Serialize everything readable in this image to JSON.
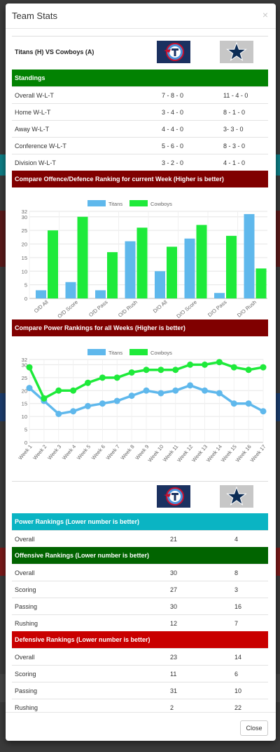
{
  "modal": {
    "title": "Team Stats",
    "close_icon": "×",
    "close_button": "Close"
  },
  "matchup": {
    "label": "Titans (H) VS Cowboys (A)",
    "home_logo": "titans-logo",
    "away_logo": "cowboys-star-logo"
  },
  "standings": {
    "title": "Standings",
    "rows": [
      {
        "label": "Overall W-L-T",
        "home": "7 - 8 - 0",
        "away": "11 - 4 - 0"
      },
      {
        "label": "Home W-L-T",
        "home": "3 - 4 - 0",
        "away": "8 - 1 - 0"
      },
      {
        "label": "Away W-L-T",
        "home": "4 - 4 - 0",
        "away": "3- 3 - 0"
      },
      {
        "label": "Conference W-L-T",
        "home": "5 - 6 - 0",
        "away": "8 - 3 - 0"
      },
      {
        "label": "Division W-L-T",
        "home": "3 - 2 - 0",
        "away": "4 - 1 - 0"
      }
    ]
  },
  "compare_title": "Compare Offence/Defence Ranking for current Week (Higher is better)",
  "power_title": "Compare Power Rankings for all Weeks (Higher is better)",
  "colors": {
    "titans": "#5fb8ec",
    "cowboys": "#1eea3a"
  },
  "chart_data": [
    {
      "type": "bar",
      "categories": [
        "O/D All",
        "O/D Score",
        "O/D Pass",
        "O/D Rush",
        "D/O All",
        "D/O Score",
        "D/O Pass",
        "D/O Rush"
      ],
      "series": [
        {
          "name": "Titans",
          "values": [
            3,
            6,
            3,
            21,
            10,
            22,
            2,
            31
          ]
        },
        {
          "name": "Cowboys",
          "values": [
            25,
            30,
            17,
            26,
            19,
            27,
            23,
            11
          ]
        }
      ],
      "yticks": [
        0,
        5,
        10,
        15,
        20,
        25,
        30,
        32
      ],
      "ylim": [
        0,
        32
      ],
      "legend": "top-center"
    },
    {
      "type": "line",
      "categories": [
        "Week 1",
        "Week 2",
        "Week 3",
        "Week 4",
        "Week 5",
        "Week 6",
        "Week 7",
        "Week 8",
        "Week 9",
        "Week 10",
        "Week 11",
        "Week 12",
        "Week 13",
        "Week 14",
        "Week 15",
        "Week 16",
        "Week 17"
      ],
      "series": [
        {
          "name": "Titans",
          "values": [
            21,
            16,
            11,
            12,
            14,
            15,
            16,
            18,
            20,
            19,
            20,
            22,
            20,
            19,
            15,
            15,
            12
          ]
        },
        {
          "name": "Cowboys",
          "values": [
            29,
            17,
            20,
            20,
            23,
            25,
            25,
            27,
            28,
            28,
            28,
            30,
            30,
            31,
            29,
            28,
            29
          ]
        }
      ],
      "yticks": [
        0,
        5,
        10,
        15,
        20,
        25,
        30,
        32
      ],
      "ylim": [
        0,
        32
      ],
      "legend": "top-center"
    }
  ],
  "power": {
    "title": "Power Rankings (Lower number is better)",
    "rows": [
      {
        "label": "Overall",
        "home": "21",
        "away": "4"
      }
    ]
  },
  "offensive": {
    "title": "Offensive Rankings (Lower number is better)",
    "rows": [
      {
        "label": "Overall",
        "home": "30",
        "away": "8"
      },
      {
        "label": "Scoring",
        "home": "27",
        "away": "3"
      },
      {
        "label": "Passing",
        "home": "30",
        "away": "16"
      },
      {
        "label": "Rushing",
        "home": "12",
        "away": "7"
      }
    ]
  },
  "defensive": {
    "title": "Defensive Rankings (Lower number is better)",
    "rows": [
      {
        "label": "Overall",
        "home": "23",
        "away": "14"
      },
      {
        "label": "Scoring",
        "home": "11",
        "away": "6"
      },
      {
        "label": "Passing",
        "home": "31",
        "away": "10"
      },
      {
        "label": "Rushing",
        "home": "2",
        "away": "22"
      }
    ]
  }
}
